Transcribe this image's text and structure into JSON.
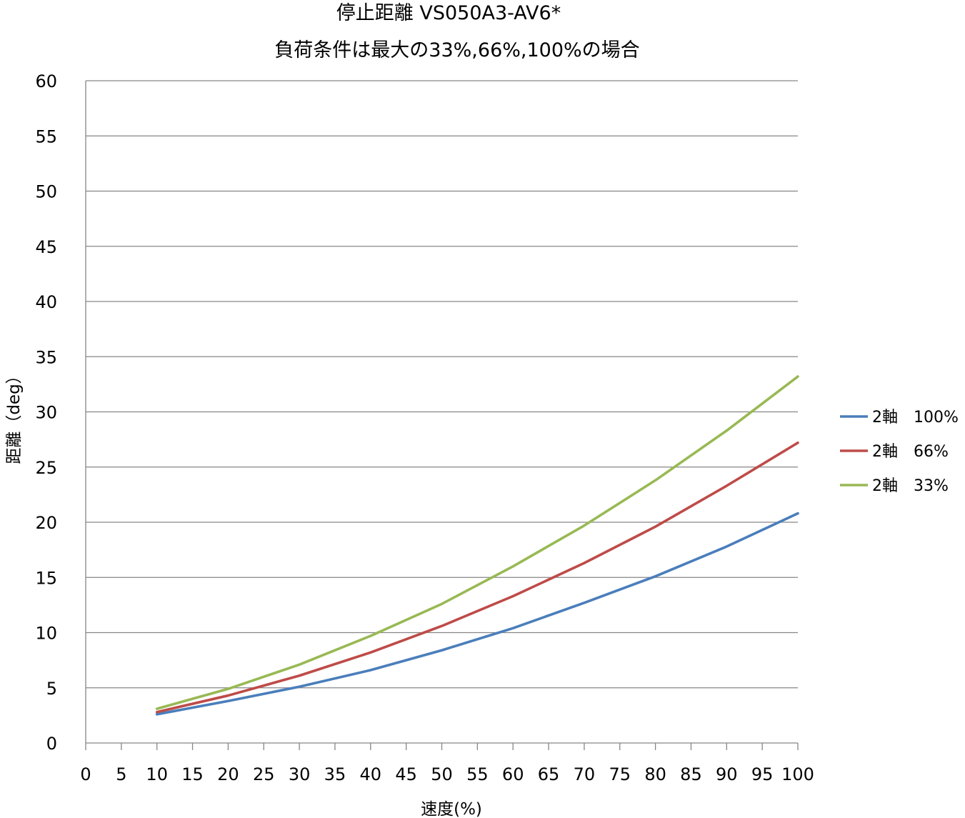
{
  "chart_data": {
    "type": "line",
    "title_lines": [
      "停止距離 VS050A3-AV6*",
      "負荷条件は最大の33%,66%,100%の場合"
    ],
    "xlabel": "速度(%)",
    "ylabel": "距離（deg）",
    "xlim": [
      0,
      100
    ],
    "ylim": [
      0,
      60
    ],
    "x_ticks": [
      "0",
      "5",
      "10",
      "15",
      "20",
      "25",
      "30",
      "35",
      "40",
      "45",
      "50",
      "55",
      "60",
      "65",
      "70",
      "75",
      "80",
      "85",
      "90",
      "95",
      "100"
    ],
    "y_ticks": [
      "0",
      "5",
      "10",
      "15",
      "20",
      "25",
      "30",
      "35",
      "40",
      "45",
      "50",
      "55",
      "60"
    ],
    "x": [
      10,
      20,
      30,
      40,
      50,
      60,
      70,
      80,
      90,
      100
    ],
    "grid": "horizontal",
    "legend_position": "right",
    "series": [
      {
        "name": "2軸　100%",
        "color": "#4a7ebb",
        "values": [
          2.6,
          3.8,
          5.1,
          6.6,
          8.4,
          10.4,
          12.7,
          15.1,
          17.8,
          20.8
        ]
      },
      {
        "name": "2軸　66%",
        "color": "#be4b48",
        "values": [
          2.8,
          4.3,
          6.1,
          8.2,
          10.6,
          13.3,
          16.3,
          19.6,
          23.3,
          27.2
        ]
      },
      {
        "name": "2軸　33%",
        "color": "#98b954",
        "values": [
          3.1,
          4.9,
          7.1,
          9.7,
          12.6,
          16.0,
          19.7,
          23.8,
          28.3,
          33.2
        ]
      }
    ]
  }
}
